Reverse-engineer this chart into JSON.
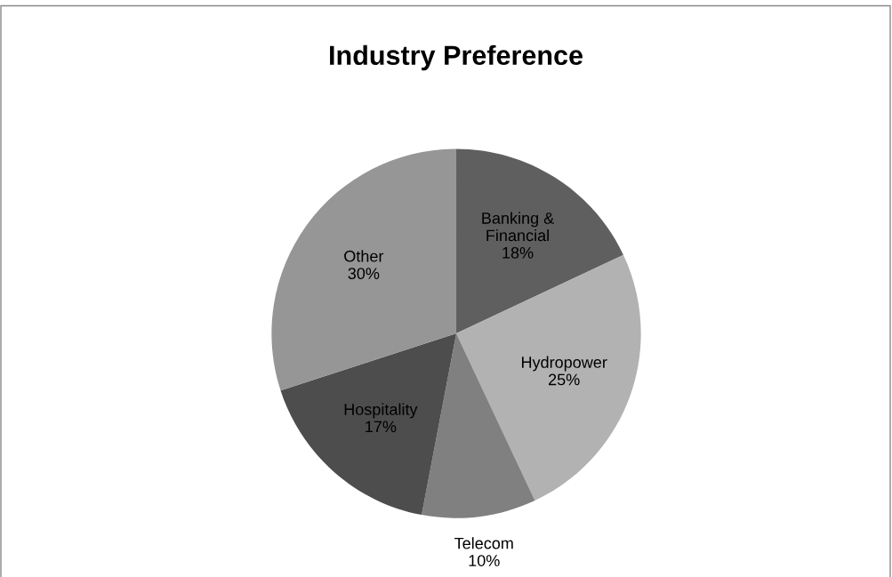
{
  "chart_data": {
    "type": "pie",
    "title": "Industry Preference",
    "categories": [
      "Banking &\nFinancial",
      "Hydropower",
      "Telecom",
      "Hospitality",
      "Other"
    ],
    "values": [
      18,
      25,
      10,
      17,
      30
    ],
    "colors": [
      "#5f5f5f",
      "#b2b2b2",
      "#808080",
      "#4d4d4d",
      "#969696"
    ],
    "value_labels": [
      "18%",
      "25%",
      "10%",
      "17%",
      "30%"
    ],
    "legend": false
  }
}
